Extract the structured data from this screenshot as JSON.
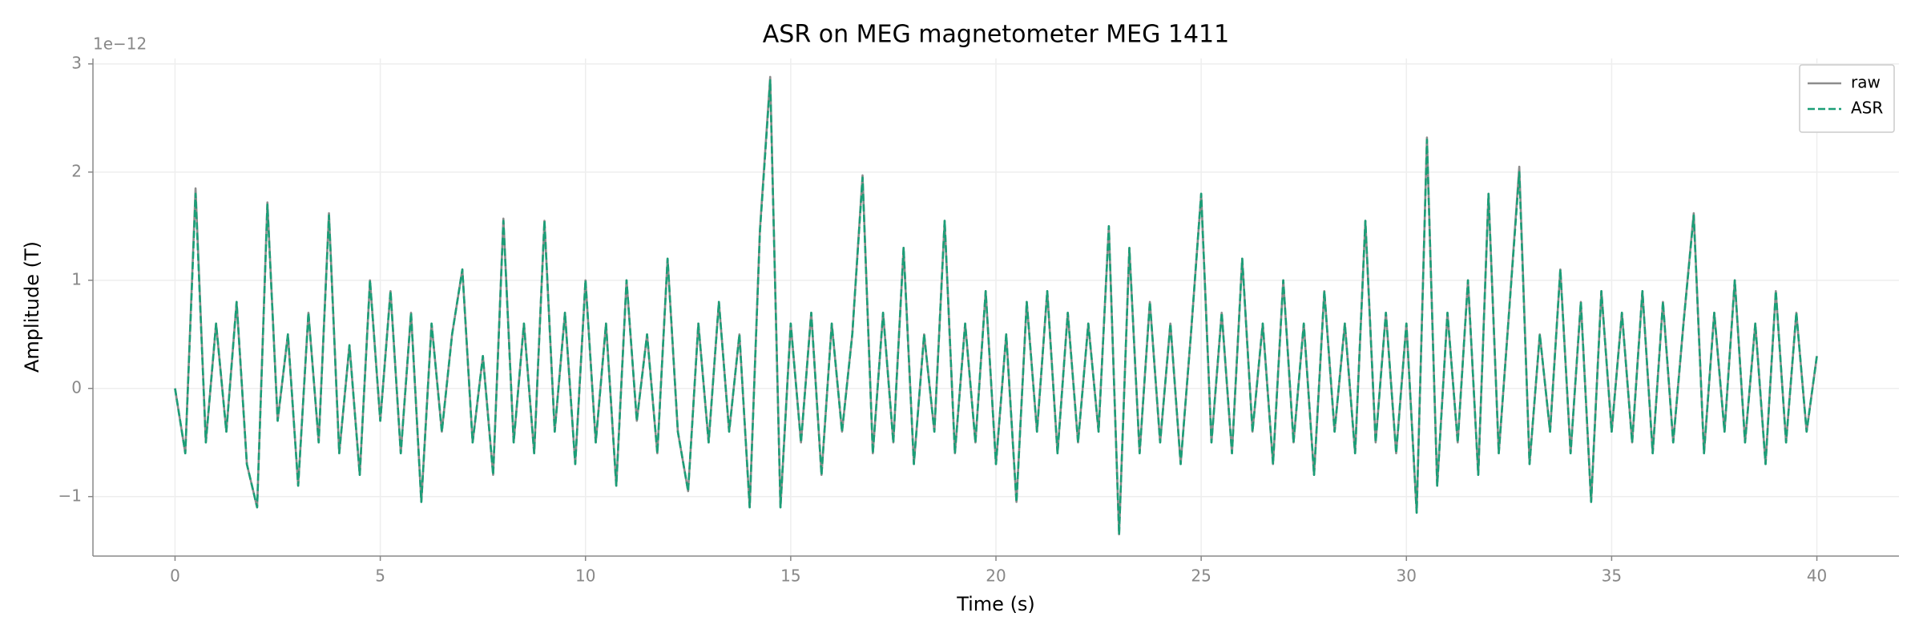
{
  "chart_data": {
    "type": "line",
    "title": "ASR on MEG magnetometer MEG 1411",
    "xlabel": "Time (s)",
    "ylabel": "Amplitude (T)",
    "y_offset_label": "1e−12",
    "x": [
      0,
      0.25,
      0.5,
      0.75,
      1,
      1.25,
      1.5,
      1.75,
      2,
      2.25,
      2.5,
      2.75,
      3,
      3.25,
      3.5,
      3.75,
      4,
      4.25,
      4.5,
      4.75,
      5,
      5.25,
      5.5,
      5.75,
      6,
      6.25,
      6.5,
      6.75,
      7,
      7.25,
      7.5,
      7.75,
      8,
      8.25,
      8.5,
      8.75,
      9,
      9.25,
      9.5,
      9.75,
      10,
      10.25,
      10.5,
      10.75,
      11,
      11.25,
      11.5,
      11.75,
      12,
      12.25,
      12.5,
      12.75,
      13,
      13.25,
      13.5,
      13.75,
      14,
      14.25,
      14.5,
      14.75,
      15,
      15.25,
      15.5,
      15.75,
      16,
      16.25,
      16.5,
      16.75,
      17,
      17.25,
      17.5,
      17.75,
      18,
      18.25,
      18.5,
      18.75,
      19,
      19.25,
      19.5,
      19.75,
      20,
      20.25,
      20.5,
      20.75,
      21,
      21.25,
      21.5,
      21.75,
      22,
      22.25,
      22.5,
      22.75,
      23,
      23.25,
      23.5,
      23.75,
      24,
      24.25,
      24.5,
      24.75,
      25,
      25.25,
      25.5,
      25.75,
      26,
      26.25,
      26.5,
      26.75,
      27,
      27.25,
      27.5,
      27.75,
      28,
      28.25,
      28.5,
      28.75,
      29,
      29.25,
      29.5,
      29.75,
      30,
      30.25,
      30.5,
      30.75,
      31,
      31.25,
      31.5,
      31.75,
      32,
      32.25,
      32.5,
      32.75,
      33,
      33.25,
      33.5,
      33.75,
      34,
      34.25,
      34.5,
      34.75,
      35,
      35.25,
      35.5,
      35.75,
      36,
      36.25,
      36.5,
      36.75,
      37,
      37.25,
      37.5,
      37.75,
      38,
      38.25,
      38.5,
      38.75,
      39,
      39.25,
      39.5,
      39.75,
      40
    ],
    "series": [
      {
        "name": "raw",
        "color": "#8c8c8c",
        "dash": false,
        "values": [
          0,
          -0.6,
          1.85,
          -0.5,
          0.6,
          -0.4,
          0.8,
          -0.7,
          -1.1,
          1.72,
          -0.3,
          0.5,
          -0.9,
          0.7,
          -0.5,
          1.62,
          -0.6,
          0.4,
          -0.8,
          1.0,
          -0.3,
          0.9,
          -0.6,
          0.7,
          -1.05,
          0.6,
          -0.4,
          0.5,
          1.1,
          -0.5,
          0.3,
          -0.8,
          1.57,
          -0.5,
          0.6,
          -0.6,
          1.55,
          -0.4,
          0.7,
          -0.7,
          1.0,
          -0.5,
          0.6,
          -0.9,
          1.0,
          -0.3,
          0.5,
          -0.6,
          1.2,
          -0.4,
          -0.95,
          0.6,
          -0.5,
          0.8,
          -0.4,
          0.5,
          -1.1,
          1.47,
          2.88,
          -1.1,
          0.6,
          -0.5,
          0.7,
          -0.8,
          0.6,
          -0.4,
          0.5,
          1.97,
          -0.6,
          0.7,
          -0.5,
          1.3,
          -0.7,
          0.5,
          -0.4,
          1.55,
          -0.6,
          0.6,
          -0.5,
          0.9,
          -0.7,
          0.5,
          -1.05,
          0.8,
          -0.4,
          0.9,
          -0.6,
          0.7,
          -0.5,
          0.6,
          -0.4,
          1.5,
          -1.35,
          1.3,
          -0.6,
          0.8,
          -0.5,
          0.6,
          -0.7,
          0.5,
          1.8,
          -0.5,
          0.7,
          -0.6,
          1.2,
          -0.4,
          0.6,
          -0.7,
          1.0,
          -0.5,
          0.6,
          -0.8,
          0.9,
          -0.4,
          0.6,
          -0.6,
          1.55,
          -0.5,
          0.7,
          -0.6,
          0.6,
          -1.15,
          2.32,
          -0.9,
          0.7,
          -0.5,
          1.0,
          -0.8,
          1.8,
          -0.6,
          0.7,
          2.05,
          -0.7,
          0.5,
          -0.4,
          1.1,
          -0.6,
          0.8,
          -1.05,
          0.9,
          -0.4,
          0.7,
          -0.5,
          0.9,
          -0.6,
          0.8,
          -0.5,
          0.6,
          1.62,
          -0.6,
          0.7,
          -0.4,
          1.0,
          -0.5,
          0.6,
          -0.7,
          0.9,
          -0.5,
          0.7,
          -0.4,
          0.3
        ]
      },
      {
        "name": "ASR",
        "color": "#1b9e77",
        "dash": true,
        "values": [
          0,
          -0.6,
          1.8,
          -0.5,
          0.6,
          -0.4,
          0.8,
          -0.7,
          -1.1,
          1.7,
          -0.3,
          0.5,
          -0.9,
          0.7,
          -0.5,
          1.6,
          -0.6,
          0.4,
          -0.8,
          1.0,
          -0.3,
          0.9,
          -0.6,
          0.7,
          -1.05,
          0.6,
          -0.4,
          0.5,
          1.1,
          -0.5,
          0.3,
          -0.8,
          1.55,
          -0.5,
          0.6,
          -0.6,
          1.55,
          -0.4,
          0.7,
          -0.7,
          1.0,
          -0.5,
          0.6,
          -0.9,
          1.0,
          -0.3,
          0.5,
          -0.6,
          1.2,
          -0.4,
          -0.95,
          0.6,
          -0.5,
          0.8,
          -0.4,
          0.5,
          -1.1,
          1.45,
          2.85,
          -1.1,
          0.6,
          -0.5,
          0.7,
          -0.8,
          0.6,
          -0.4,
          0.5,
          1.95,
          -0.6,
          0.7,
          -0.5,
          1.3,
          -0.7,
          0.5,
          -0.4,
          1.55,
          -0.6,
          0.6,
          -0.5,
          0.9,
          -0.7,
          0.5,
          -1.05,
          0.8,
          -0.4,
          0.9,
          -0.6,
          0.7,
          -0.5,
          0.6,
          -0.4,
          1.5,
          -1.35,
          1.3,
          -0.6,
          0.8,
          -0.5,
          0.6,
          -0.7,
          0.5,
          1.8,
          -0.5,
          0.7,
          -0.6,
          1.2,
          -0.4,
          0.6,
          -0.7,
          1.0,
          -0.5,
          0.6,
          -0.8,
          0.9,
          -0.4,
          0.6,
          -0.6,
          1.55,
          -0.5,
          0.7,
          -0.6,
          0.6,
          -1.15,
          2.3,
          -0.9,
          0.7,
          -0.5,
          1.0,
          -0.8,
          1.8,
          -0.6,
          0.7,
          2.0,
          -0.7,
          0.5,
          -0.4,
          1.1,
          -0.6,
          0.8,
          -1.05,
          0.9,
          -0.4,
          0.7,
          -0.5,
          0.9,
          -0.6,
          0.8,
          -0.5,
          0.6,
          1.6,
          -0.6,
          0.7,
          -0.4,
          1.0,
          -0.5,
          0.6,
          -0.7,
          0.9,
          -0.5,
          0.7,
          -0.4,
          0.3
        ]
      }
    ],
    "xlim": [
      -2,
      42
    ],
    "ylim": [
      -1.55,
      3.05
    ],
    "xticks": [
      0,
      5,
      10,
      15,
      20,
      25,
      30,
      35,
      40
    ],
    "yticks": [
      {
        "value": -1,
        "label": "−1"
      },
      0,
      1,
      2,
      3
    ],
    "grid": true,
    "legend": "upper right"
  }
}
